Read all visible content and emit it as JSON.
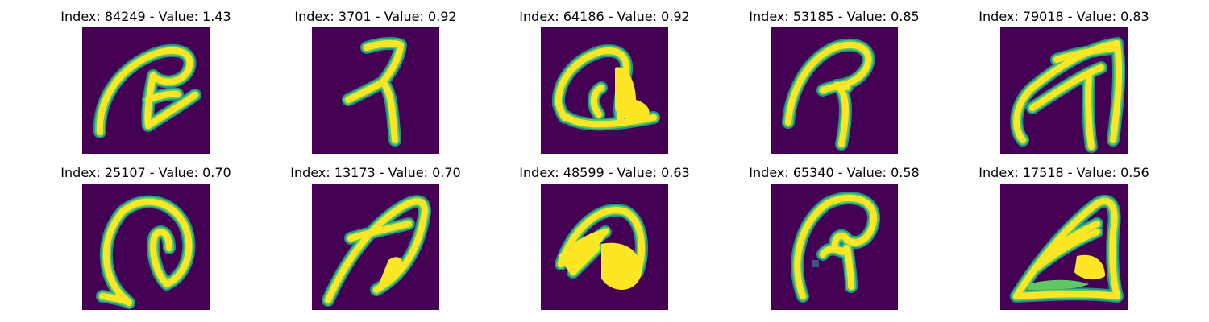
{
  "colors": {
    "background": "#440154",
    "low": "#3b528b",
    "mid": "#21918c",
    "high": "#fde725",
    "mid_high": "#5ec962"
  },
  "panels": [
    {
      "title": "Index: 84249 - Value: 1.43"
    },
    {
      "title": "Index: 3701 - Value: 0.92"
    },
    {
      "title": "Index: 64186 - Value: 0.92"
    },
    {
      "title": "Index: 53185 - Value: 0.85"
    },
    {
      "title": "Index: 79018 - Value: 0.83"
    },
    {
      "title": "Index: 25107 - Value: 0.70"
    },
    {
      "title": "Index: 13173 - Value: 0.70"
    },
    {
      "title": "Index: 48599 - Value: 0.63"
    },
    {
      "title": "Index: 65340 - Value: 0.58"
    },
    {
      "title": "Index: 17518 - Value: 0.56"
    }
  ]
}
